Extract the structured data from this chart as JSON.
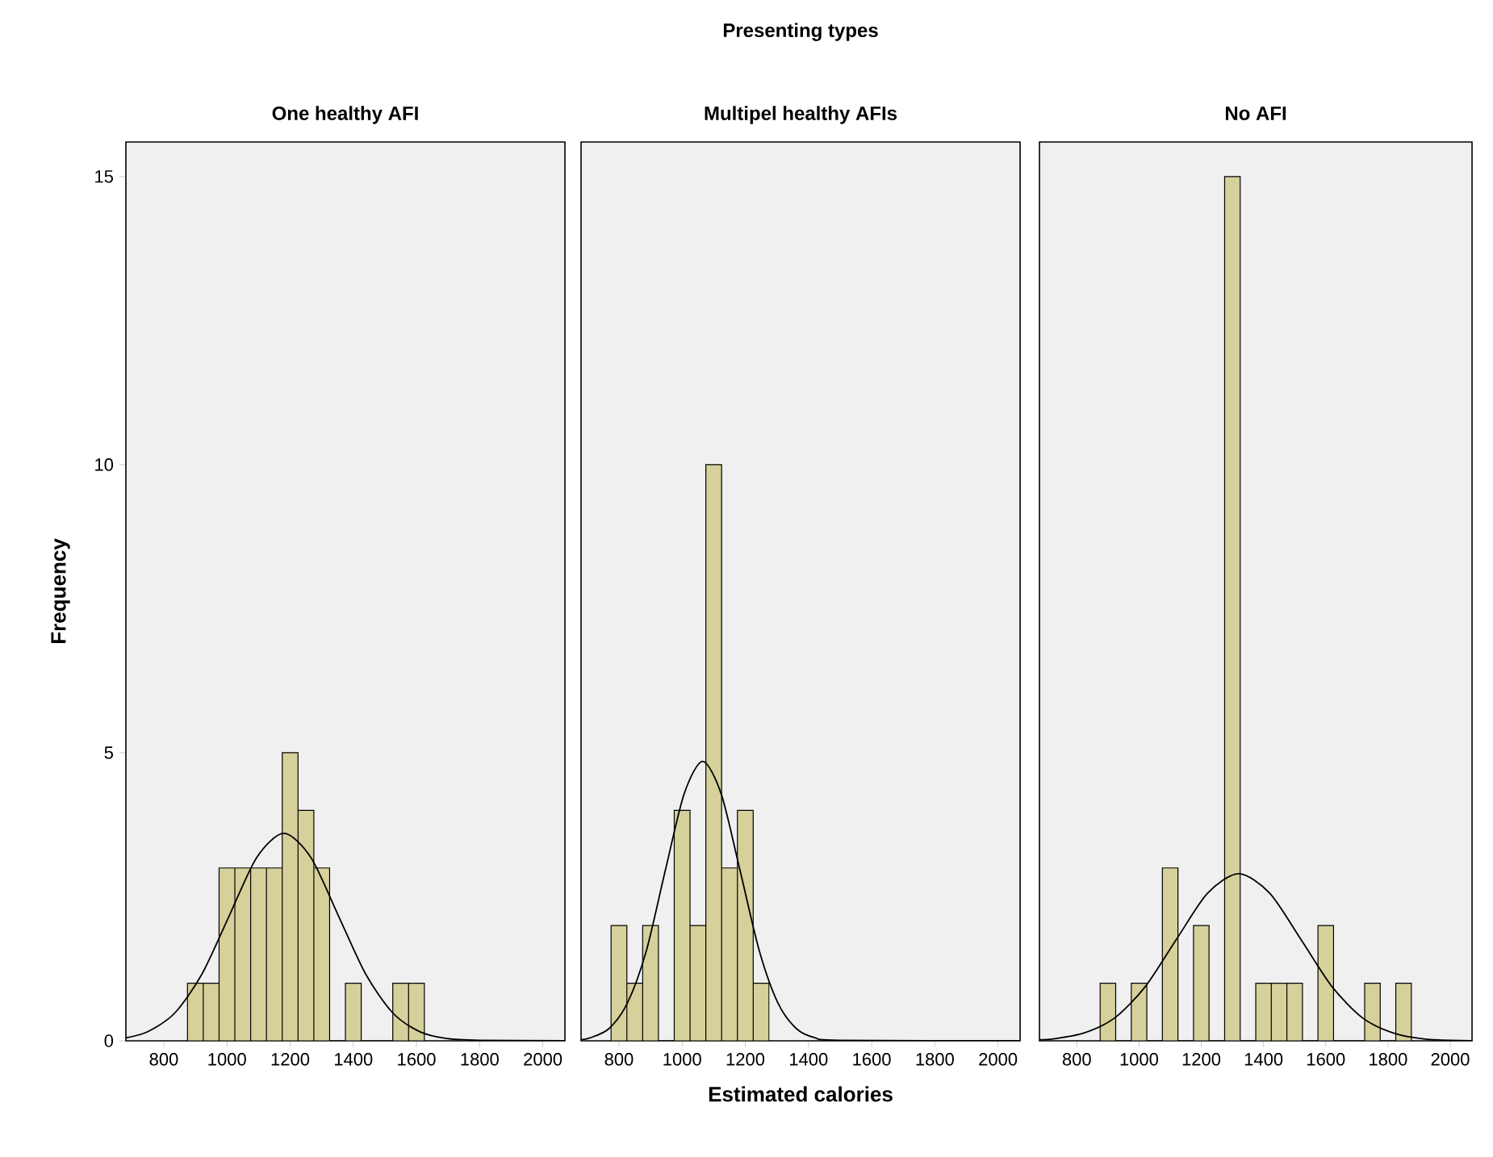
{
  "chart_data": [
    {
      "type": "histogram",
      "title": "One healthy AFI",
      "ylabel": "Frequency",
      "xlim": [
        680,
        2070
      ],
      "ylim": [
        0,
        15.6
      ],
      "xticks": [
        800,
        1000,
        1200,
        1400,
        1600,
        1800,
        2000
      ],
      "yticks": [
        0,
        5,
        10,
        15
      ],
      "grid": false,
      "bins": [
        875,
        925,
        975,
        1025,
        1075,
        1125,
        1175,
        1225,
        1275,
        1325,
        1375,
        1425,
        1475,
        1525,
        1575,
        1625
      ],
      "series": [
        {
          "color": "#d6d09a",
          "values": [
            1,
            1,
            3,
            3,
            3,
            3,
            5,
            4,
            3,
            0,
            1,
            0,
            0,
            1,
            1
          ]
        },
        {
          "type": "line",
          "color": "#000000",
          "x": [
            680,
            750,
            836,
            922,
            1008,
            1094,
            1180,
            1266,
            1352,
            1438,
            1524,
            1610,
            1696,
            1800,
            2070
          ],
          "values": [
            0.05,
            0.16,
            0.49,
            1.17,
            2.18,
            3.18,
            3.6,
            3.18,
            2.18,
            1.17,
            0.49,
            0.16,
            0.04,
            0.01,
            0
          ]
        }
      ]
    },
    {
      "type": "histogram",
      "title": "Multipel healthy AFIs",
      "xlabel": "Estimated calories",
      "annotations": [
        "Presenting types"
      ],
      "xlim": [
        680,
        2070
      ],
      "ylim": [
        0,
        15.6
      ],
      "xticks": [
        800,
        1000,
        1200,
        1400,
        1600,
        1800,
        2000
      ],
      "yticks": [
        0,
        5,
        10,
        15
      ],
      "tick_labels": "x",
      "grid": false,
      "bins": [
        775,
        825,
        875,
        925,
        975,
        1025,
        1075,
        1125,
        1175,
        1225,
        1275
      ],
      "series": [
        {
          "color": "#d6d09a",
          "values": [
            2,
            1,
            2,
            0,
            4,
            2,
            10,
            3,
            4,
            1
          ]
        },
        {
          "type": "line",
          "color": "#000000",
          "x": [
            680,
            708,
            768,
            827,
            887,
            946,
            1006,
            1065,
            1124,
            1184,
            1244,
            1303,
            1362,
            1422,
            1500,
            2070
          ],
          "values": [
            0.02,
            0.05,
            0.21,
            0.66,
            1.57,
            2.94,
            4.28,
            4.85,
            4.28,
            2.94,
            1.57,
            0.66,
            0.21,
            0.05,
            0.01,
            0
          ]
        }
      ]
    },
    {
      "type": "histogram",
      "title": "No AFI",
      "xlim": [
        680,
        2070
      ],
      "ylim": [
        0,
        15.6
      ],
      "xticks": [
        800,
        1000,
        1200,
        1400,
        1600,
        1800,
        2000
      ],
      "yticks": [
        0,
        5,
        10,
        15
      ],
      "tick_labels": "x",
      "grid": false,
      "bins": [
        875,
        925,
        975,
        1025,
        1075,
        1125,
        1175,
        1225,
        1275,
        1325,
        1375,
        1425,
        1475,
        1525,
        1575,
        1625,
        1675,
        1725,
        1775,
        1825,
        1875
      ],
      "series": [
        {
          "color": "#d6d09a",
          "values": [
            1,
            0,
            1,
            0,
            3,
            0,
            2,
            0,
            15,
            0,
            1,
            1,
            1,
            0,
            2,
            0,
            0,
            1,
            0,
            1
          ]
        },
        {
          "type": "line",
          "color": "#000000",
          "x": [
            680,
            720,
            820,
            920,
            1020,
            1120,
            1220,
            1320,
            1420,
            1520,
            1620,
            1720,
            1820,
            1920,
            2070
          ],
          "values": [
            0.02,
            0.03,
            0.13,
            0.39,
            0.94,
            1.76,
            2.56,
            2.9,
            2.56,
            1.76,
            0.94,
            0.39,
            0.13,
            0.03,
            0
          ]
        }
      ]
    }
  ]
}
